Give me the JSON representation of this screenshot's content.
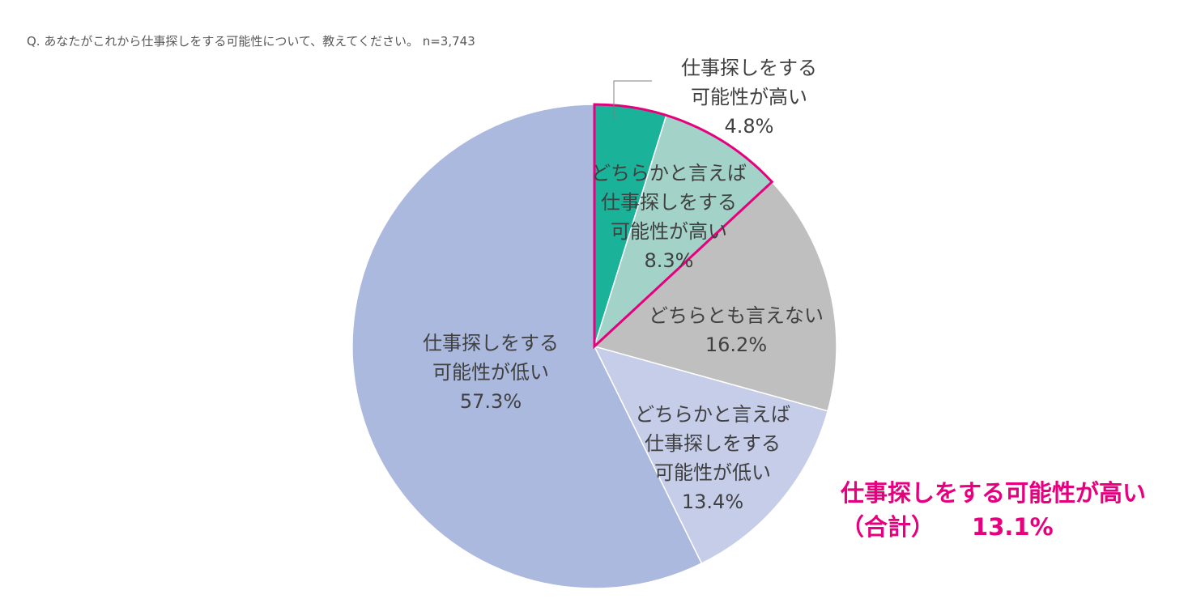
{
  "question": "Q.  あなたがこれから仕事探しをする可能性について、教えてください。  n=3,743",
  "chart_data": {
    "type": "pie",
    "start_angle_deg": 0,
    "direction": "clockwise",
    "slices": [
      {
        "name": "high",
        "lines": [
          "仕事探しをする",
          "可能性が高い",
          "4.8%"
        ],
        "value": 4.8,
        "color": "#1ab39a"
      },
      {
        "name": "somewhat-high",
        "lines": [
          "どちらかと言えば",
          "仕事探しをする",
          "可能性が高い",
          "8.3%"
        ],
        "value": 8.3,
        "color": "#a3d3c8"
      },
      {
        "name": "neutral",
        "lines": [
          "どちらとも言えない",
          "16.2%"
        ],
        "value": 16.2,
        "color": "#bfbfbf"
      },
      {
        "name": "somewhat-low",
        "lines": [
          "どちらかと言えば",
          "仕事探しをする",
          "可能性が低い",
          "13.4%"
        ],
        "value": 13.4,
        "color": "#c5cde8"
      },
      {
        "name": "low",
        "lines": [
          "仕事探しをする",
          "可能性が低い",
          "57.3%"
        ],
        "value": 57.3,
        "color": "#abb9de"
      }
    ],
    "highlight": {
      "slices": [
        "high",
        "somewhat-high"
      ],
      "color": "#e6007e",
      "label_line1": "仕事探しをする可能性が高い",
      "label_line2_prefix": "（合計）",
      "label_line2_value": "13.1%"
    }
  }
}
